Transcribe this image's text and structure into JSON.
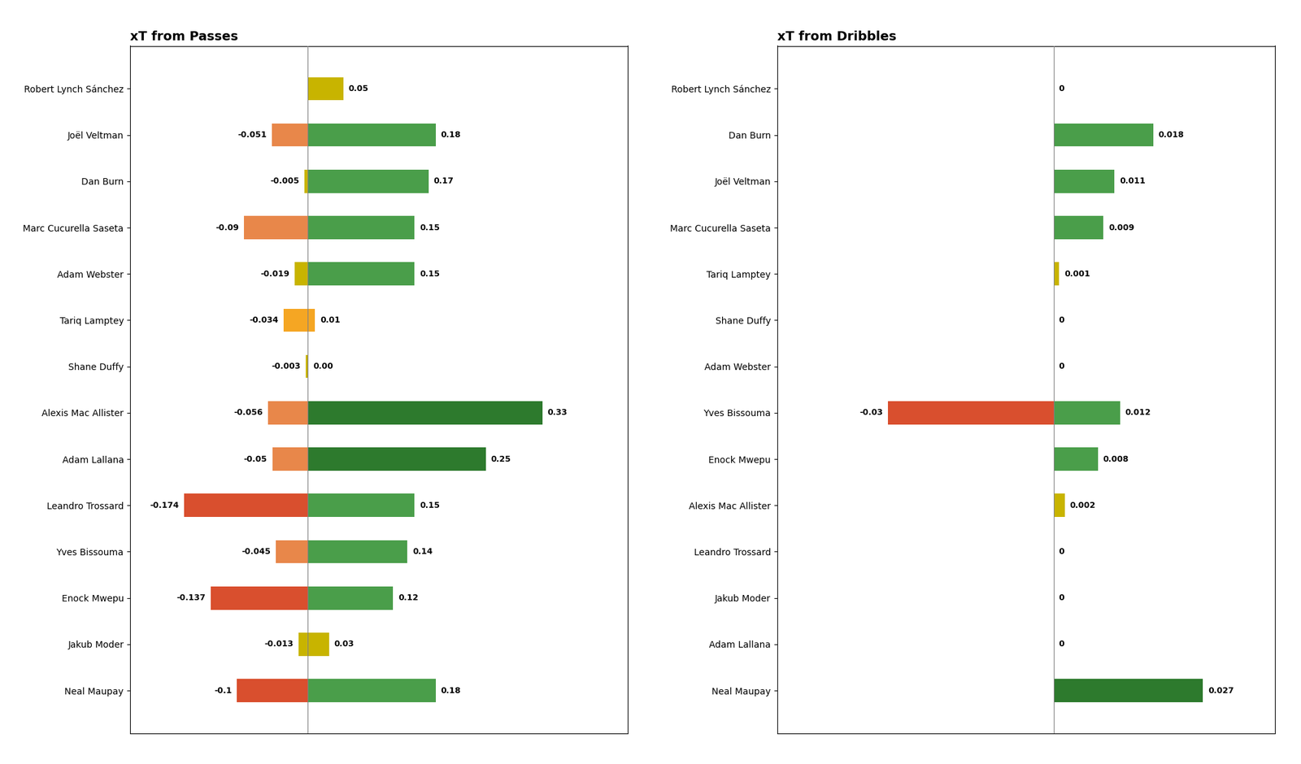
{
  "chart_data": [
    {
      "type": "bar",
      "orientation": "horizontal",
      "title": "xT from Passes",
      "categories": [
        "Robert Lynch Sánchez",
        "Joël Veltman",
        "Dan Burn",
        "Marc Cucurella Saseta",
        "Adam Webster",
        "Tariq Lamptey",
        "Shane Duffy",
        "Alexis Mac Allister",
        "Adam Lallana",
        "Leandro Trossard",
        "Yves Bissouma",
        "Enock Mwepu",
        "Jakub Moder",
        "Neal Maupay"
      ],
      "series": [
        {
          "values": [
            0,
            -0.051,
            -0.005,
            -0.09,
            -0.019,
            -0.034,
            -0.003,
            -0.056,
            -0.05,
            -0.174,
            -0.045,
            -0.137,
            -0.013,
            -0.1
          ],
          "value_labels": [
            null,
            "-0.051",
            "-0.005",
            "-0.09",
            "-0.019",
            "-0.034",
            "-0.003",
            "-0.056",
            "-0.05",
            "-0.174",
            "-0.045",
            "-0.137",
            "-0.013",
            "-0.1"
          ],
          "colors": [
            "#c8b400",
            "#e8874a",
            "#c8b400",
            "#e8874a",
            "#c8b400",
            "#f5a623",
            "#c8b400",
            "#e8874a",
            "#e8874a",
            "#d94f2e",
            "#e8874a",
            "#d94f2e",
            "#c8b400",
            "#d94f2e"
          ]
        },
        {
          "values": [
            0.05,
            0.18,
            0.17,
            0.15,
            0.15,
            0.01,
            0.0,
            0.33,
            0.25,
            0.15,
            0.14,
            0.12,
            0.03,
            0.18
          ],
          "value_labels": [
            "0.05",
            "0.18",
            "0.17",
            "0.15",
            "0.15",
            "0.01",
            "0.00",
            "0.33",
            "0.25",
            "0.15",
            "0.14",
            "0.12",
            "0.03",
            "0.18"
          ],
          "colors": [
            "#c8b400",
            "#4a9e4a",
            "#4a9e4a",
            "#4a9e4a",
            "#4a9e4a",
            "#f5a623",
            "#c8b400",
            "#2d7a2d",
            "#2d7a2d",
            "#4a9e4a",
            "#4a9e4a",
            "#4a9e4a",
            "#c8b400",
            "#4a9e4a"
          ]
        }
      ],
      "xlim": [
        -0.25,
        0.45
      ],
      "data_labels": true,
      "tick_labels": "y",
      "grid": false
    },
    {
      "type": "bar",
      "orientation": "horizontal",
      "title": "xT from Dribbles",
      "categories": [
        "Robert Lynch Sánchez",
        "Dan Burn",
        "Joël Veltman",
        "Marc Cucurella Saseta",
        "Tariq Lamptey",
        "Shane Duffy",
        "Adam Webster",
        "Yves Bissouma",
        "Enock Mwepu",
        "Alexis Mac Allister",
        "Leandro Trossard",
        "Jakub Moder",
        "Adam Lallana",
        "Neal Maupay"
      ],
      "series": [
        {
          "values": [
            0,
            0,
            0,
            0,
            0,
            0,
            0,
            -0.03,
            0,
            0,
            0,
            0,
            0,
            0
          ],
          "value_labels": [
            null,
            null,
            null,
            null,
            null,
            null,
            null,
            "-0.03",
            null,
            null,
            null,
            null,
            null,
            null
          ],
          "colors": [
            "#c8b400",
            "#c8b400",
            "#c8b400",
            "#c8b400",
            "#c8b400",
            "#c8b400",
            "#c8b400",
            "#d94f2e",
            "#c8b400",
            "#c8b400",
            "#c8b400",
            "#c8b400",
            "#c8b400",
            "#c8b400"
          ]
        },
        {
          "values": [
            0,
            0.018,
            0.011,
            0.009,
            0.001,
            0,
            0,
            0.012,
            0.008,
            0.002,
            0,
            0,
            0,
            0.027
          ],
          "value_labels": [
            "0",
            "0.018",
            "0.011",
            "0.009",
            "0.001",
            "0",
            "0",
            "0.012",
            "0.008",
            "0.002",
            "0",
            "0",
            "0",
            "0.027"
          ],
          "colors": [
            "#c8b400",
            "#4a9e4a",
            "#4a9e4a",
            "#4a9e4a",
            "#c8b400",
            "#c8b400",
            "#c8b400",
            "#4a9e4a",
            "#4a9e4a",
            "#c8b400",
            "#c8b400",
            "#c8b400",
            "#c8b400",
            "#2d7a2d"
          ]
        }
      ],
      "xlim": [
        -0.05,
        0.04
      ],
      "data_labels": true,
      "tick_labels": "y",
      "grid": false
    }
  ]
}
